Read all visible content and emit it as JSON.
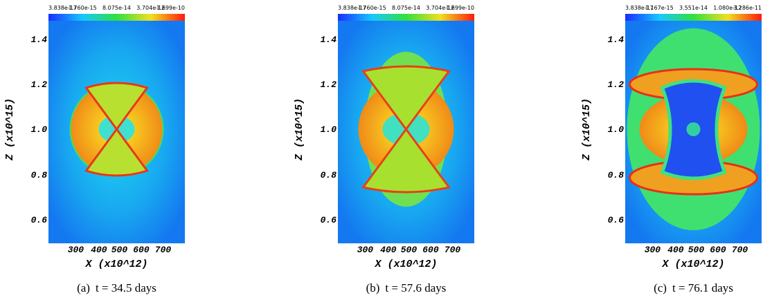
{
  "panels": [
    {
      "colorbar_labels": [
        "3.838e-17",
        "1.760e-15",
        "8.075e-14",
        "3.704e-12",
        "1.699e-10"
      ],
      "yticks": [
        "1.4",
        "1.2",
        "1.0",
        "0.8",
        "0.6"
      ],
      "xticks": [
        "300",
        "400",
        "500",
        "600",
        "700"
      ],
      "xlabel": "X (x10^12)",
      "ylabel": "Z (x10^15)",
      "caption_label": "(a)",
      "caption_text": "t = 34.5 days"
    },
    {
      "colorbar_labels": [
        "3.838e-17",
        "1.760e-15",
        "8.075e-14",
        "3.704e-12",
        "1.699e-10"
      ],
      "yticks": [
        "1.4",
        "1.2",
        "1.0",
        "0.8",
        "0.6"
      ],
      "xticks": [
        "300",
        "400",
        "500",
        "600",
        "700"
      ],
      "xlabel": "X (x10^12)",
      "ylabel": "Z (x10^15)",
      "caption_label": "(b)",
      "caption_text": "t = 57.6 days"
    },
    {
      "colorbar_labels": [
        "3.838e-17",
        "1.167e-15",
        "3.551e-14",
        "1.080e-12",
        "3.286e-11"
      ],
      "yticks": [
        "1.4",
        "1.2",
        "1.0",
        "0.8",
        "0.6"
      ],
      "xticks": [
        "300",
        "400",
        "500",
        "600",
        "700"
      ],
      "xlabel": "X (x10^12)",
      "ylabel": "Z (x10^15)",
      "caption_label": "(c)",
      "caption_text": "t = 76.1 days"
    }
  ]
}
